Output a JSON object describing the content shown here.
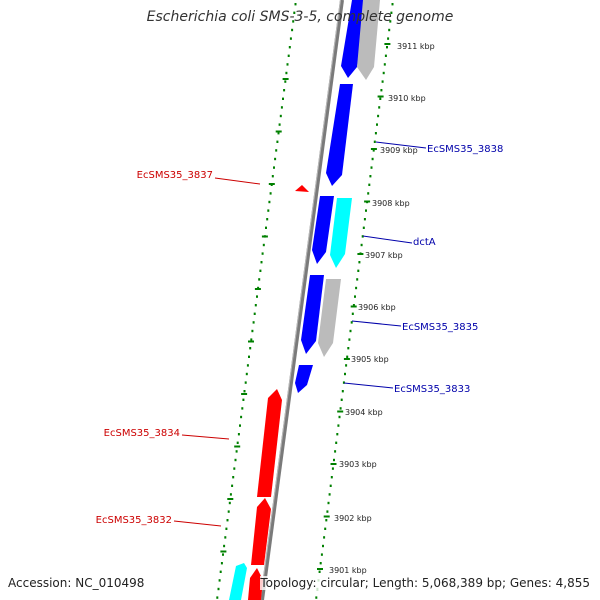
{
  "title": "Escherichia coli SMS-3-5, complete genome",
  "footer": {
    "accession": "Accession: NC_010498",
    "topology": "Topology: circular; Length: 5,068,389 bp; Genes: 4,855"
  },
  "colors": {
    "forward_gene": "#ff0000",
    "reverse_gene": "#0000ff",
    "rna_or_other": "#00ffff",
    "gray_feature": "#bbbbbb",
    "backbone": "#888888",
    "tick": "#008000",
    "forward_label": "#cc0000",
    "reverse_label": "#0000aa"
  },
  "scale_labels": [
    {
      "label": "3911 kbp",
      "kbp": 3911
    },
    {
      "label": "3910 kbp",
      "kbp": 3910
    },
    {
      "label": "3909 kbp",
      "kbp": 3909
    },
    {
      "label": "3908 kbp",
      "kbp": 3908
    },
    {
      "label": "3907 kbp",
      "kbp": 3907
    },
    {
      "label": "3906 kbp",
      "kbp": 3906
    },
    {
      "label": "3905 kbp",
      "kbp": 3905
    },
    {
      "label": "3904 kbp",
      "kbp": 3904
    },
    {
      "label": "3903 kbp",
      "kbp": 3903
    },
    {
      "label": "3902 kbp",
      "kbp": 3902
    },
    {
      "label": "3901 kbp",
      "kbp": 3901
    }
  ],
  "feature_labels": {
    "EcSMS35_3838": "EcSMS35_3838",
    "dctA": "dctA",
    "EcSMS35_3835": "EcSMS35_3835",
    "EcSMS35_3833": "EcSMS35_3833",
    "EcSMS35_3837": "EcSMS35_3837",
    "EcSMS35_3834": "EcSMS35_3834",
    "EcSMS35_3832": "EcSMS35_3832"
  }
}
